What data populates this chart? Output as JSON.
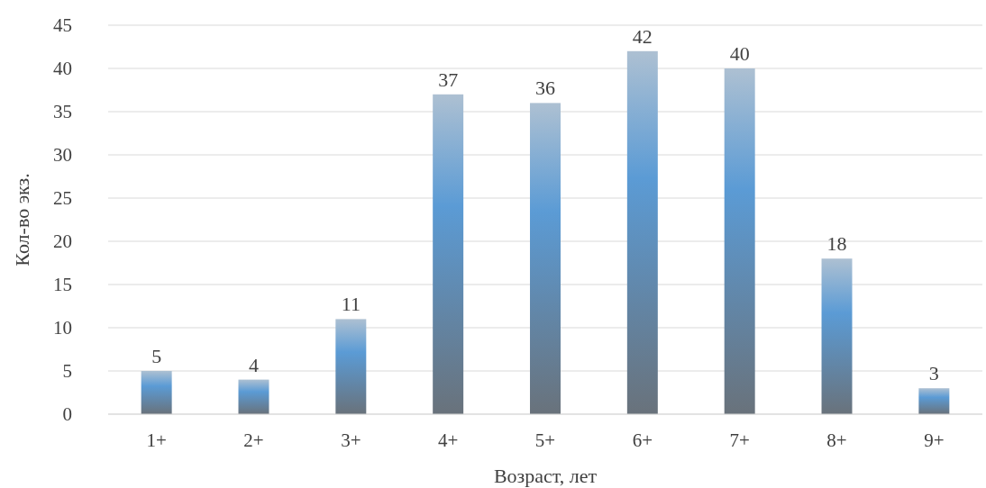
{
  "chart_data": {
    "type": "bar",
    "xlabel": "Возраст, лет",
    "ylabel": "Кол-во экз.",
    "categories": [
      "1+",
      "2+",
      "3+",
      "4+",
      "5+",
      "6+",
      "7+",
      "8+",
      "9+"
    ],
    "values": [
      5,
      4,
      11,
      37,
      36,
      42,
      40,
      18,
      3
    ],
    "color": "#5b9bd5",
    "ylim": [
      0,
      45
    ],
    "yticks": [
      0,
      5,
      10,
      15,
      20,
      25,
      30,
      35,
      40,
      45
    ],
    "grid": "y",
    "data_labels": true
  }
}
